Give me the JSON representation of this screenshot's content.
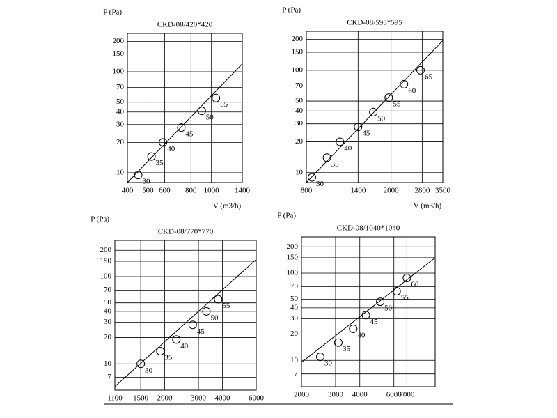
{
  "chart_data": [
    {
      "type": "scatter",
      "title": "CKD-08/420*420",
      "ylabel": "P (Pa)",
      "xlabel": "V (m3/h)",
      "xscale": "log",
      "yscale": "log",
      "grid": true,
      "color": "#000000",
      "xlim": [
        400,
        1400
      ],
      "ylim": [
        8,
        240
      ],
      "xticks": [
        400,
        500,
        600,
        800,
        1000,
        1400
      ],
      "yticks": [
        10,
        20,
        30,
        40,
        50,
        70,
        100,
        150,
        200
      ],
      "x": [
        450,
        520,
        590,
        720,
        900,
        1050
      ],
      "values": [
        9.5,
        14.5,
        20,
        28,
        41,
        55
      ],
      "point_labels": [
        30,
        35,
        40,
        45,
        50,
        55
      ],
      "fit": {
        "x": [
          400,
          1400
        ],
        "values": [
          8,
          120
        ]
      }
    },
    {
      "type": "scatter",
      "title": "CKD-08/595*595",
      "ylabel": "P (Pa)",
      "xlabel": "V (m3/h)",
      "xscale": "log",
      "yscale": "log",
      "grid": true,
      "color": "#000000",
      "xlim": [
        800,
        3500
      ],
      "ylim": [
        8,
        240
      ],
      "xticks": [
        800,
        1400,
        2000,
        2800,
        3500
      ],
      "yticks": [
        10,
        20,
        30,
        40,
        50,
        70,
        100,
        150,
        200
      ],
      "x": [
        850,
        1000,
        1150,
        1400,
        1650,
        1950,
        2300,
        2750
      ],
      "values": [
        9,
        14,
        20,
        28,
        39,
        54,
        73,
        100
      ],
      "point_labels": [
        30,
        35,
        40,
        45,
        50,
        55,
        60,
        65
      ],
      "fit": {
        "x": [
          800,
          3500
        ],
        "values": [
          8,
          195
        ]
      }
    },
    {
      "type": "scatter",
      "title": "CKD-08/770*770",
      "ylabel": "P (Pa)",
      "xscale": "log",
      "yscale": "log",
      "grid": true,
      "color": "#000000",
      "xlim": [
        1100,
        6000
      ],
      "ylim": [
        5,
        260
      ],
      "xticks": [
        1100,
        1500,
        2000,
        3000,
        4000,
        6000
      ],
      "yticks": [
        7,
        10,
        20,
        30,
        40,
        50,
        70,
        100,
        150,
        200
      ],
      "x": [
        1500,
        1900,
        2300,
        2800,
        3300,
        3800
      ],
      "values": [
        10,
        14,
        19,
        28,
        40,
        55
      ],
      "point_labels": [
        30,
        35,
        40,
        45,
        50,
        55
      ],
      "fit": {
        "x": [
          1100,
          6000
        ],
        "values": [
          5.5,
          157
        ]
      }
    },
    {
      "type": "scatter",
      "title": "CKD-08/1040*1040",
      "ylabel": "P (Pa)",
      "xscale": "log",
      "yscale": "log",
      "grid": true,
      "color": "#000000",
      "xlim": [
        2000,
        9800
      ],
      "ylim": [
        5,
        260
      ],
      "xticks": [
        2000,
        3000,
        4000,
        6000,
        7000
      ],
      "yticks": [
        7,
        10,
        20,
        30,
        40,
        50,
        70,
        100,
        150,
        200
      ],
      "x": [
        2500,
        3100,
        3700,
        4300,
        5100,
        6200,
        7000
      ],
      "values": [
        11,
        16,
        23,
        33,
        47,
        62,
        88
      ],
      "point_labels": [
        30,
        35,
        40,
        45,
        50,
        55,
        60
      ],
      "fit": {
        "x": [
          2000,
          9800
        ],
        "values": [
          9.5,
          150
        ]
      }
    }
  ]
}
